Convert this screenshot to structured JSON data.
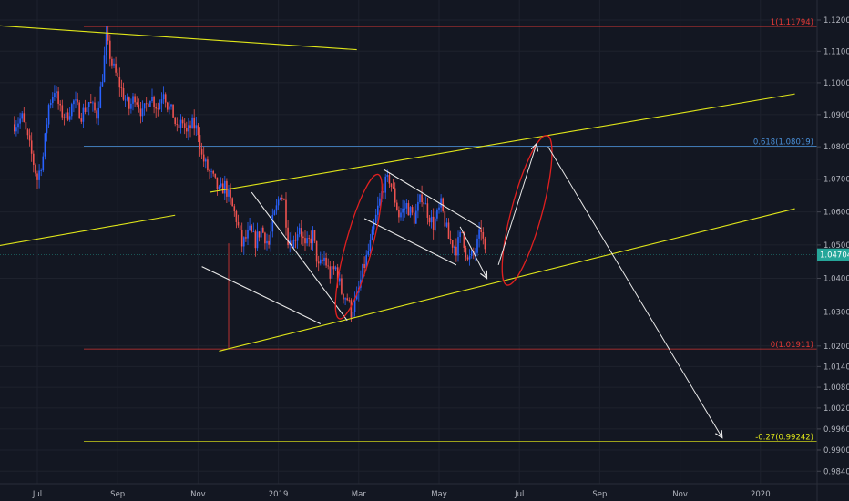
{
  "chart_data": {
    "type": "candlestick",
    "title": "",
    "x_axis": {
      "ticks": [
        "Jul",
        "Sep",
        "Nov",
        "2019",
        "Mar",
        "May",
        "Jul",
        "Sep",
        "Nov",
        "2020"
      ],
      "tick_bars": [
        8,
        50,
        92,
        134,
        176,
        218,
        260,
        302,
        344,
        386
      ]
    },
    "y_axis": {
      "ticks": [
        "1.12000",
        "1.11000",
        "1.10000",
        "1.09000",
        "1.08000",
        "1.07000",
        "1.06000",
        "1.05000",
        "1.04000",
        "1.03000",
        "1.02000",
        "1.01400",
        "1.00800",
        "1.00200",
        "0.99600",
        "0.99000",
        "0.98400"
      ],
      "range": [
        0.981,
        1.1235
      ],
      "scale": "log"
    },
    "last_price": {
      "label": "1.04704",
      "value": 1.04704,
      "color": "#26a69a"
    },
    "colors": {
      "up": "#2962ff",
      "down": "#ef5350",
      "trendline": "#e0e619",
      "projection": "#e8e8e8",
      "ellipse": "#e02020"
    },
    "fib_levels": [
      {
        "label": "1(1.11794)",
        "value": 1.11794,
        "color": "#e53935"
      },
      {
        "label": "0.618(1.08019)",
        "value": 1.08019,
        "color": "#4a90d9"
      },
      {
        "label": "0(1.01911)",
        "value": 1.01911,
        "color": "#e53935"
      },
      {
        "label": "-0.27(0.99242)",
        "value": 0.99242,
        "color": "#e0e619"
      }
    ],
    "price_path": [
      [
        -4,
        1.087
      ],
      [
        0,
        1.089
      ],
      [
        4,
        1.08
      ],
      [
        8,
        1.07
      ],
      [
        11,
        1.077
      ],
      [
        14,
        1.093
      ],
      [
        17,
        1.098
      ],
      [
        20,
        1.091
      ],
      [
        23,
        1.089
      ],
      [
        27,
        1.094
      ],
      [
        31,
        1.09
      ],
      [
        35,
        1.094
      ],
      [
        39,
        1.09
      ],
      [
        42,
        1.102
      ],
      [
        44,
        1.114
      ],
      [
        47,
        1.106
      ],
      [
        50,
        1.101
      ],
      [
        53,
        1.096
      ],
      [
        56,
        1.092
      ],
      [
        59,
        1.096
      ],
      [
        63,
        1.09
      ],
      [
        67,
        1.096
      ],
      [
        71,
        1.092
      ],
      [
        74,
        1.098
      ],
      [
        76,
        1.093
      ],
      [
        79,
        1.09
      ],
      [
        81,
        1.085
      ],
      [
        84,
        1.088
      ],
      [
        86,
        1.084
      ],
      [
        89,
        1.087
      ],
      [
        92,
        1.085
      ],
      [
        94,
        1.077
      ],
      [
        97,
        1.073
      ],
      [
        100,
        1.07
      ],
      [
        103,
        1.066
      ],
      [
        106,
        1.068
      ],
      [
        109,
        1.063
      ],
      [
        112,
        1.058
      ],
      [
        115,
        1.05
      ],
      [
        119,
        1.054
      ],
      [
        122,
        1.051
      ],
      [
        125,
        1.055
      ],
      [
        129,
        1.05
      ],
      [
        131,
        1.057
      ],
      [
        133,
        1.061
      ],
      [
        135,
        1.066
      ],
      [
        137,
        1.063
      ],
      [
        139,
        1.052
      ],
      [
        142,
        1.051
      ],
      [
        145,
        1.056
      ],
      [
        148,
        1.049
      ],
      [
        152,
        1.053
      ],
      [
        155,
        1.043
      ],
      [
        158,
        1.046
      ],
      [
        161,
        1.041
      ],
      [
        164,
        1.043
      ],
      [
        167,
        1.036
      ],
      [
        170,
        1.034
      ],
      [
        172,
        1.03
      ],
      [
        175,
        1.034
      ],
      [
        178,
        1.042
      ],
      [
        182,
        1.05
      ],
      [
        186,
        1.061
      ],
      [
        189,
        1.068
      ],
      [
        192,
        1.07
      ],
      [
        194,
        1.066
      ],
      [
        197,
        1.059
      ],
      [
        201,
        1.062
      ],
      [
        205,
        1.058
      ],
      [
        209,
        1.065
      ],
      [
        212,
        1.06
      ],
      [
        215,
        1.056
      ],
      [
        219,
        1.062
      ],
      [
        223,
        1.052
      ],
      [
        227,
        1.049
      ],
      [
        230,
        1.054
      ],
      [
        233,
        1.045
      ],
      [
        237,
        1.048
      ],
      [
        240,
        1.055
      ],
      [
        242,
        1.047
      ]
    ],
    "trendlines": [
      {
        "points": [
          [
            -20,
            1.1185
          ],
          [
            175,
            1.1105
          ]
        ],
        "color": "#e0e619"
      },
      {
        "points": [
          [
            -20,
            1.049
          ],
          [
            80,
            1.059
          ]
        ],
        "color": "#e0e619"
      },
      {
        "points": [
          [
            98,
            1.066
          ],
          [
            404,
            1.0965
          ]
        ],
        "color": "#e0e619"
      },
      {
        "points": [
          [
            103,
            1.0185
          ],
          [
            404,
            1.061
          ]
        ],
        "color": "#e0e619"
      },
      {
        "points": [
          [
            120,
            1.066
          ],
          [
            170,
            1.0275
          ]
        ],
        "color": "#e8e8e8"
      },
      {
        "points": [
          [
            94,
            1.0435
          ],
          [
            156,
            1.0265
          ]
        ],
        "color": "#e8e8e8"
      },
      {
        "points": [
          [
            189,
            1.073
          ],
          [
            240,
            1.055
          ]
        ],
        "color": "#e8e8e8"
      },
      {
        "points": [
          [
            179,
            1.058
          ],
          [
            227,
            1.044
          ]
        ],
        "color": "#e8e8e8"
      }
    ],
    "projection_arrows": [
      {
        "from": [
          229,
          1.0555
        ],
        "to": [
          243,
          1.04
        ]
      },
      {
        "from": [
          249,
          1.044
        ],
        "to": [
          269,
          1.081
        ]
      },
      {
        "from": [
          275,
          1.08
        ],
        "to": [
          366,
          0.9935
        ]
      }
    ],
    "ellipses": [
      {
        "center": [
          176,
          1.0495
        ],
        "rx_bars": 7,
        "ry_px": 82,
        "rotate": 15
      },
      {
        "center": [
          264,
          1.0605
        ],
        "rx_bars": 8,
        "ry_px": 85,
        "rotate": 15
      }
    ],
    "vertical_marker": {
      "bar": 108,
      "from": 1.0505,
      "to": 1.0191,
      "color": "#e53935"
    }
  }
}
